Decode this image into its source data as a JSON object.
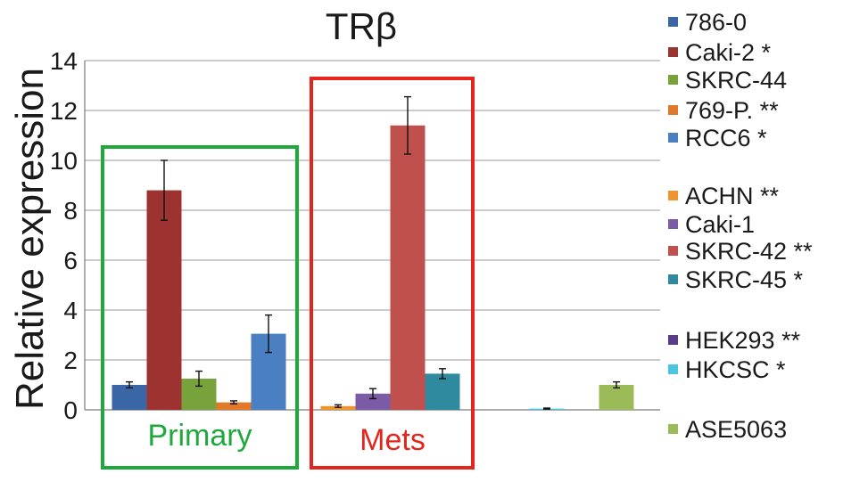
{
  "chart_data": {
    "type": "bar",
    "title": "TRβ",
    "ylabel": "Relative expression",
    "xlabel": "",
    "ylim": [
      0,
      14
    ],
    "yticks": [
      0,
      2,
      4,
      6,
      8,
      10,
      12,
      14
    ],
    "grid": true,
    "legend_position": "right",
    "bars": [
      {
        "name": "786-0",
        "legend": "786-0",
        "value": 1.0,
        "err": 0.12,
        "color": "#3a66a6",
        "group": "Primary"
      },
      {
        "name": "Caki-2",
        "legend": "Caki-2 *",
        "value": 8.8,
        "err": 1.2,
        "color": "#9c3330",
        "group": "Primary"
      },
      {
        "name": "SKRC-44",
        "legend": "SKRC-44",
        "value": 1.25,
        "err": 0.3,
        "color": "#78a33c",
        "group": "Primary"
      },
      {
        "name": "769-P.",
        "legend": "769-P. **",
        "value": 0.3,
        "err": 0.06,
        "color": "#e07a2a",
        "group": "Primary"
      },
      {
        "name": "RCC6",
        "legend": "RCC6 *",
        "value": 3.05,
        "err": 0.75,
        "color": "#4a7fc1",
        "group": "Primary"
      },
      {
        "name": "ACHN",
        "legend": "ACHN **",
        "value": 0.15,
        "err": 0.05,
        "color": "#f0952e",
        "group": "Mets"
      },
      {
        "name": "Caki-1",
        "legend": "Caki-1",
        "value": 0.65,
        "err": 0.2,
        "color": "#7b5aa6",
        "group": "Mets"
      },
      {
        "name": "SKRC-42",
        "legend": "SKRC-42 **",
        "value": 11.4,
        "err": 1.15,
        "color": "#c0504d",
        "group": "Mets"
      },
      {
        "name": "SKRC-45",
        "legend": "SKRC-45 *",
        "value": 1.45,
        "err": 0.2,
        "color": "#2f8a9f",
        "group": "Mets"
      },
      {
        "name": "HEK293",
        "legend": "HEK293 **",
        "value": 0.0,
        "err": 0.0,
        "color": "#5b3c8c",
        "group": ""
      },
      {
        "name": "HKCSC",
        "legend": "HKCSC *",
        "value": 0.05,
        "err": 0.02,
        "color": "#4bc6df",
        "group": ""
      },
      {
        "name": "ASE5063",
        "legend": "ASE5063",
        "value": 1.0,
        "err": 0.12,
        "color": "#9bbb59",
        "group": ""
      }
    ],
    "groups": [
      {
        "label": "Primary",
        "color": "#1fa83c"
      },
      {
        "label": "Mets",
        "color": "#e2261d"
      }
    ]
  }
}
